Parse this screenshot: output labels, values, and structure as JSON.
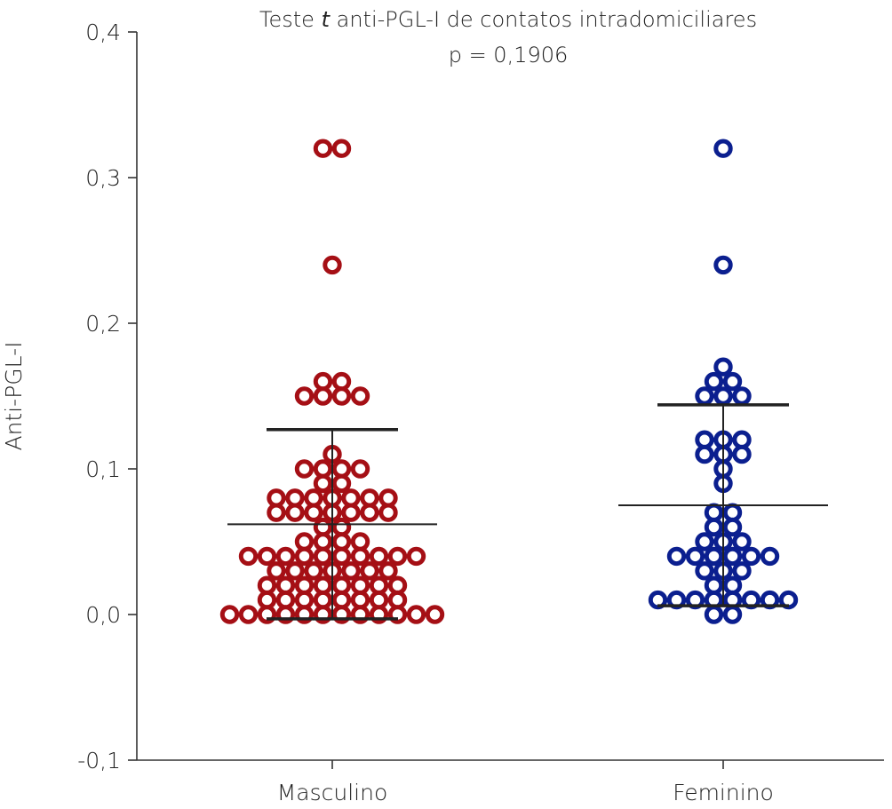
{
  "chart_data": {
    "type": "scatter",
    "title_prefix": "Teste ",
    "title_italic": "t",
    "title_suffix": " anti-PGL-I de contatos intradomiciliares",
    "subtitle": "p = 0,1906",
    "ylabel": "Anti-PGL-I",
    "xlabel": "",
    "ylim": [
      -0.1,
      0.4
    ],
    "yticks": [
      -0.1,
      0.0,
      0.1,
      0.2,
      0.3,
      0.4
    ],
    "ytick_labels": [
      "-0,1",
      "0,0",
      "0,1",
      "0,2",
      "0,3",
      "0,4"
    ],
    "grid": false,
    "categories": [
      "Masculino",
      "Feminino"
    ],
    "series": [
      {
        "category": "Masculino",
        "color": "#a50f15",
        "mean": 0.062,
        "sd_upper": 0.127,
        "sd_lower": -0.003,
        "values": [
          0.32,
          0.32,
          0.24,
          0.16,
          0.16,
          0.15,
          0.15,
          0.15,
          0.15,
          0.11,
          0.1,
          0.1,
          0.1,
          0.1,
          0.09,
          0.09,
          0.08,
          0.08,
          0.08,
          0.08,
          0.08,
          0.08,
          0.08,
          0.07,
          0.07,
          0.07,
          0.07,
          0.07,
          0.07,
          0.07,
          0.06,
          0.06,
          0.05,
          0.05,
          0.05,
          0.05,
          0.04,
          0.04,
          0.04,
          0.04,
          0.04,
          0.04,
          0.04,
          0.04,
          0.04,
          0.04,
          0.03,
          0.03,
          0.03,
          0.03,
          0.03,
          0.03,
          0.03,
          0.02,
          0.02,
          0.02,
          0.02,
          0.02,
          0.02,
          0.02,
          0.02,
          0.01,
          0.01,
          0.01,
          0.01,
          0.01,
          0.01,
          0.01,
          0.01,
          0.0,
          0.0,
          0.0,
          0.0,
          0.0,
          0.0,
          0.0,
          0.0,
          0.0,
          0.0,
          0.0,
          0.0
        ]
      },
      {
        "category": "Feminino",
        "color": "#0b1f8f",
        "mean": 0.075,
        "sd_upper": 0.144,
        "sd_lower": 0.006,
        "values": [
          0.32,
          0.24,
          0.17,
          0.16,
          0.16,
          0.15,
          0.15,
          0.15,
          0.12,
          0.12,
          0.12,
          0.11,
          0.11,
          0.11,
          0.1,
          0.09,
          0.07,
          0.07,
          0.06,
          0.06,
          0.05,
          0.05,
          0.05,
          0.04,
          0.04,
          0.04,
          0.04,
          0.04,
          0.04,
          0.03,
          0.03,
          0.03,
          0.02,
          0.02,
          0.01,
          0.01,
          0.01,
          0.01,
          0.01,
          0.01,
          0.01,
          0.01,
          0.0,
          0.0
        ]
      }
    ]
  }
}
